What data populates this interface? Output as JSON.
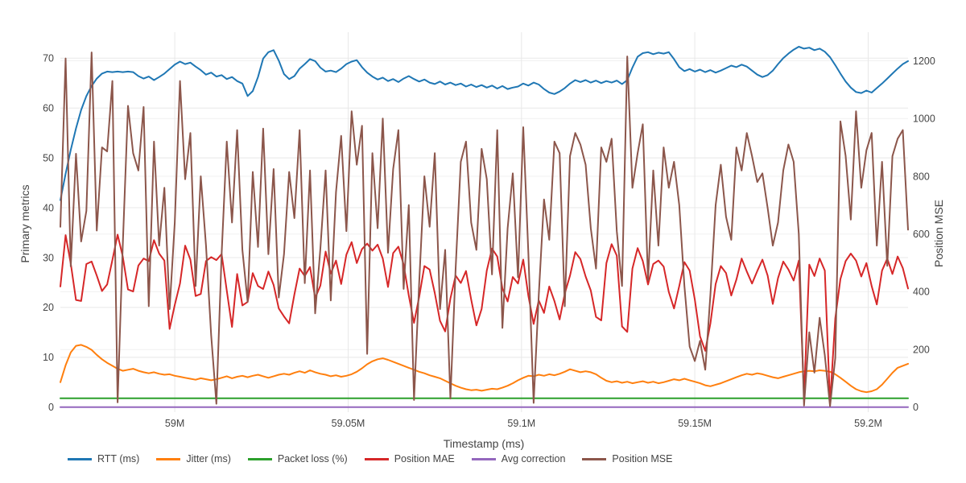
{
  "chart_data": {
    "type": "line",
    "title": "",
    "xlabel": "Timestamp (ms)",
    "ylabel_left": "Primary metrics",
    "ylabel_right": "Position MSE",
    "grid": true,
    "legend_position": "bottom",
    "x_start_ms": 58967000,
    "x_step_ms": 1500,
    "n_points": 164,
    "x_ticks": [
      {
        "value": 59000000,
        "label": "59M"
      },
      {
        "value": 59050000,
        "label": "59.05M"
      },
      {
        "value": 59100000,
        "label": "59.1M"
      },
      {
        "value": 59150000,
        "label": "59.15M"
      },
      {
        "value": 59200000,
        "label": "59.2M"
      }
    ],
    "y_left_axis": {
      "min": -1.0,
      "max": 75.2,
      "ticks": [
        0,
        10,
        20,
        30,
        40,
        50,
        60,
        70
      ]
    },
    "y_right_axis": {
      "min": -17,
      "max": 1299,
      "ticks": [
        0,
        200,
        400,
        600,
        800,
        1000,
        1200
      ]
    },
    "series": [
      {
        "name": "RTT (ms)",
        "color": "#1f77b4",
        "axis": "left",
        "values": [
          41.5,
          46.8,
          51.6,
          55.9,
          59.6,
          62.4,
          64.4,
          65.9,
          66.9,
          67.3,
          67.2,
          67.3,
          67.2,
          67.3,
          67.2,
          66.4,
          65.9,
          66.3,
          65.6,
          66.2,
          66.9,
          67.8,
          68.7,
          69.3,
          68.8,
          69.1,
          68.3,
          67.6,
          66.7,
          67.1,
          66.3,
          66.6,
          65.8,
          66.2,
          65.4,
          64.9,
          62.4,
          63.4,
          66.2,
          69.9,
          71.2,
          71.6,
          69.5,
          66.8,
          65.8,
          66.4,
          67.9,
          68.8,
          69.8,
          69.4,
          68.1,
          67.3,
          67.5,
          67.2,
          67.9,
          68.8,
          69.3,
          69.6,
          68.2,
          67.1,
          66.3,
          65.7,
          66.1,
          65.4,
          65.8,
          65.2,
          65.9,
          66.4,
          65.8,
          65.3,
          65.7,
          65.1,
          64.8,
          65.3,
          64.7,
          65.1,
          64.6,
          64.9,
          64.3,
          64.7,
          64.2,
          64.6,
          64.1,
          64.5,
          63.9,
          64.4,
          63.8,
          64.1,
          64.3,
          64.9,
          64.5,
          65.1,
          64.7,
          63.8,
          63.1,
          62.8,
          63.3,
          64.0,
          64.9,
          65.6,
          65.2,
          65.6,
          65.1,
          65.5,
          65.0,
          65.4,
          65.1,
          65.5,
          64.8,
          65.6,
          68.1,
          70.3,
          71.0,
          71.2,
          70.8,
          71.1,
          70.9,
          71.2,
          69.8,
          68.2,
          67.4,
          67.8,
          67.3,
          67.7,
          67.2,
          67.6,
          67.1,
          67.5,
          68.0,
          68.5,
          68.2,
          68.7,
          68.3,
          67.5,
          66.7,
          66.2,
          66.6,
          67.5,
          68.8,
          70.0,
          70.9,
          71.7,
          72.3,
          71.9,
          72.1,
          71.6,
          71.9,
          71.3,
          70.2,
          68.6,
          66.9,
          65.3,
          64.1,
          63.2,
          63.0,
          63.5,
          63.1,
          64.0,
          64.9,
          65.9,
          66.9,
          67.9,
          68.8,
          69.4
        ]
      },
      {
        "name": "Jitter (ms)",
        "color": "#ff7f0e",
        "axis": "left",
        "values": [
          5.0,
          8.4,
          11.0,
          12.3,
          12.5,
          12.1,
          11.5,
          10.5,
          9.6,
          8.9,
          8.3,
          7.7,
          7.3,
          7.5,
          7.7,
          7.3,
          7.0,
          6.8,
          7.0,
          6.7,
          6.5,
          6.6,
          6.3,
          6.1,
          5.9,
          5.7,
          5.5,
          5.8,
          5.6,
          5.4,
          5.6,
          5.9,
          6.2,
          5.8,
          6.1,
          6.3,
          6.0,
          6.3,
          6.5,
          6.2,
          5.9,
          6.2,
          6.5,
          6.7,
          6.5,
          6.9,
          7.2,
          6.9,
          7.4,
          7.0,
          6.7,
          6.5,
          6.2,
          6.4,
          6.1,
          6.3,
          6.6,
          7.1,
          7.8,
          8.6,
          9.2,
          9.6,
          9.8,
          9.5,
          9.1,
          8.7,
          8.3,
          7.9,
          7.5,
          7.1,
          6.8,
          6.4,
          6.1,
          5.8,
          5.3,
          4.8,
          4.3,
          3.9,
          3.6,
          3.4,
          3.5,
          3.3,
          3.5,
          3.7,
          3.6,
          3.9,
          4.3,
          4.8,
          5.4,
          5.9,
          6.3,
          6.2,
          6.5,
          6.3,
          6.6,
          6.4,
          6.7,
          7.1,
          7.6,
          7.3,
          7.0,
          7.2,
          7.0,
          6.6,
          5.9,
          5.3,
          5.0,
          5.2,
          4.9,
          5.1,
          4.8,
          5.0,
          5.2,
          4.9,
          5.1,
          4.8,
          5.0,
          5.3,
          5.6,
          5.4,
          5.7,
          5.4,
          5.1,
          4.8,
          4.4,
          4.2,
          4.5,
          4.8,
          5.2,
          5.6,
          6.0,
          6.4,
          6.7,
          6.5,
          6.8,
          6.6,
          6.3,
          6.0,
          5.8,
          6.1,
          6.4,
          6.7,
          7.0,
          7.2,
          7.3,
          7.2,
          7.4,
          7.3,
          7.1,
          6.6,
          5.9,
          5.1,
          4.3,
          3.6,
          3.2,
          3.0,
          3.2,
          3.6,
          4.5,
          5.7,
          6.9,
          7.9,
          8.3,
          8.7
        ]
      },
      {
        "name": "Packet loss (%)",
        "color": "#2ca02c",
        "axis": "left",
        "constant": 1.8
      },
      {
        "name": "Position MAE",
        "color": "#d62728",
        "axis": "left",
        "values": [
          24.2,
          34.5,
          28.8,
          21.5,
          21.3,
          28.7,
          29.2,
          26.4,
          23.3,
          24.6,
          29.5,
          34.6,
          30.2,
          23.6,
          23.2,
          28.4,
          29.8,
          29.3,
          33.5,
          30.8,
          29.4,
          15.7,
          20.5,
          24.8,
          32.4,
          29.6,
          22.3,
          22.7,
          29.3,
          30.1,
          29.5,
          30.7,
          23.4,
          16.1,
          26.7,
          20.4,
          21.1,
          26.9,
          24.3,
          23.7,
          27.2,
          24.5,
          19.8,
          18.2,
          16.8,
          22.6,
          27.8,
          26.3,
          28.1,
          21.9,
          24.4,
          31.2,
          26.8,
          29.4,
          24.7,
          30.6,
          33.1,
          28.9,
          31.7,
          32.8,
          31.4,
          32.6,
          29.8,
          24.1,
          30.9,
          32.2,
          28.6,
          22.4,
          16.9,
          22.1,
          28.3,
          27.6,
          22.9,
          17.3,
          15.2,
          21.8,
          26.4,
          24.9,
          27.3,
          21.6,
          16.4,
          19.7,
          27.4,
          31.8,
          30.2,
          23.8,
          21.2,
          26.1,
          24.8,
          29.6,
          22.3,
          16.7,
          21.4,
          18.9,
          24.2,
          21.3,
          17.6,
          22.8,
          26.4,
          31.1,
          29.7,
          26.2,
          23.4,
          18.1,
          17.4,
          28.9,
          32.7,
          30.4,
          16.2,
          15.1,
          27.8,
          31.9,
          29.3,
          24.6,
          28.7,
          29.4,
          28.2,
          23.1,
          19.8,
          24.3,
          29.1,
          27.4,
          21.6,
          14.2,
          11.3,
          16.8,
          24.7,
          28.3,
          26.9,
          22.4,
          25.6,
          29.8,
          27.2,
          24.8,
          27.3,
          29.6,
          26.4,
          20.7,
          25.9,
          29.2,
          27.6,
          25.4,
          29.4,
          2.1,
          28.6,
          26.3,
          29.8,
          27.4,
          0.8,
          17.8,
          25.7,
          29.3,
          30.8,
          29.4,
          26.2,
          28.9,
          24.3,
          20.6,
          27.4,
          29.8,
          26.7,
          30.2,
          27.9,
          23.8
        ]
      },
      {
        "name": "Avg correction",
        "color": "#9467bd",
        "axis": "left",
        "constant": 0
      },
      {
        "name": "Position MSE",
        "color": "#8c564b",
        "axis": "right",
        "values": [
          625,
          1208,
          488,
          878,
          574,
          680,
          1229,
          612,
          900,
          886,
          1130,
          17,
          560,
          1044,
          880,
          820,
          1040,
          350,
          920,
          560,
          760,
          340,
          640,
          1130,
          790,
          950,
          420,
          800,
          560,
          250,
          12,
          530,
          920,
          640,
          960,
          545,
          365,
          815,
          555,
          965,
          530,
          825,
          380,
          530,
          815,
          655,
          960,
          430,
          820,
          325,
          550,
          820,
          370,
          745,
          940,
          610,
          1025,
          840,
          975,
          185,
          880,
          620,
          1000,
          535,
          825,
          960,
          410,
          700,
          25,
          430,
          800,
          625,
          880,
          340,
          545,
          30,
          480,
          850,
          920,
          640,
          545,
          895,
          790,
          460,
          960,
          275,
          620,
          810,
          450,
          970,
          530,
          15,
          390,
          720,
          580,
          920,
          880,
          350,
          870,
          950,
          910,
          840,
          620,
          480,
          900,
          850,
          930,
          610,
          420,
          1215,
          760,
          880,
          980,
          440,
          820,
          560,
          900,
          760,
          850,
          700,
          420,
          210,
          160,
          230,
          130,
          390,
          700,
          840,
          660,
          580,
          900,
          820,
          950,
          870,
          780,
          810,
          690,
          560,
          640,
          820,
          910,
          850,
          600,
          6,
          260,
          120,
          310,
          180,
          4,
          170,
          990,
          870,
          650,
          1025,
          760,
          890,
          950,
          560,
          850,
          490,
          870,
          930,
          960,
          615
        ]
      }
    ]
  },
  "layout_colors": {
    "background": "#ffffff",
    "grid_left": "#e8e8e8",
    "grid_right": "#f0f0f0",
    "tick_text": "#444444",
    "axis_title_text": "#444444"
  }
}
